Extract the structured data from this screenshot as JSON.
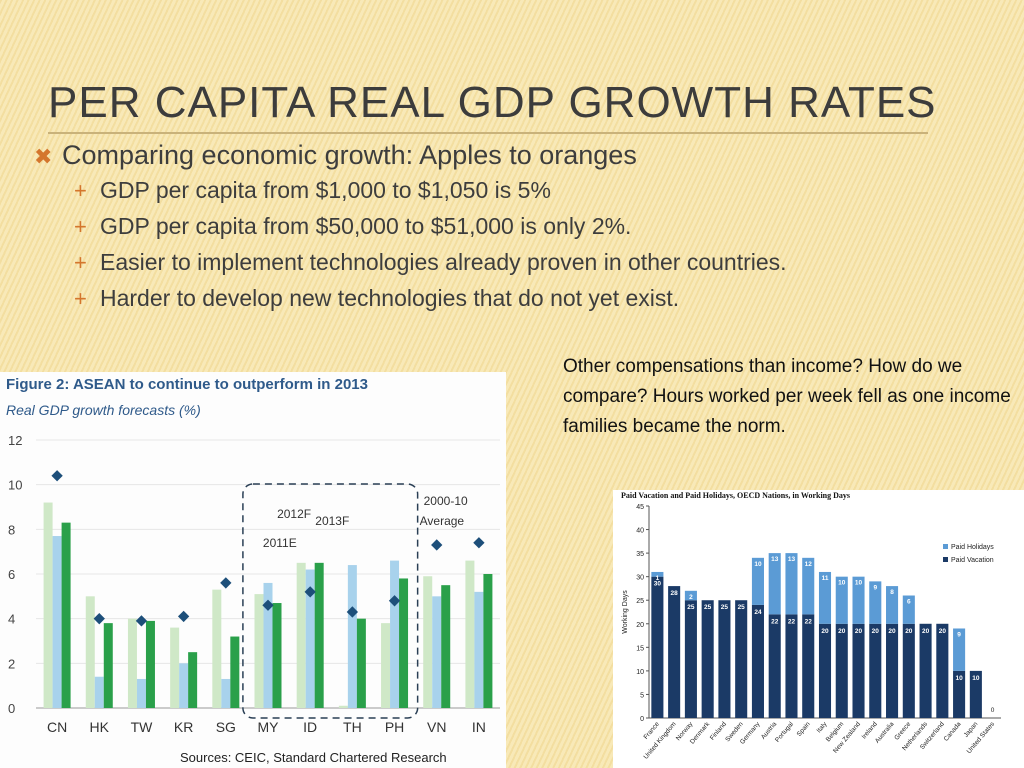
{
  "slide": {
    "title": "PER CAPITA REAL GDP GROWTH RATES",
    "bullet": "Comparing economic growth: Apples to oranges",
    "subbullets": [
      "GDP per capita from $1,000 to $1,050 is 5%",
      "GDP per capita from $50,000 to $51,000 is only 2%.",
      "Easier to implement technologies already proven in other countries.",
      "Harder to develop new technologies that do not yet exist."
    ],
    "side_note": "Other compensations than income?  How do we compare? Hours worked per week fell as one income families became the norm.",
    "colors": {
      "accent": "#d4762d",
      "title": "#3c3c3c"
    },
    "icons": {
      "bullet": "x-mark-icon",
      "subbullet": "plus-icon"
    }
  },
  "chart_data": [
    {
      "type": "bar",
      "title": "Figure 2: ASEAN to continue to outperform in 2013",
      "subtitle": "Real GDP growth forecasts (%)",
      "source": "Sources: CEIC, Standard Chartered Research",
      "categories": [
        "CN",
        "HK",
        "TW",
        "KR",
        "SG",
        "MY",
        "ID",
        "TH",
        "PH",
        "VN",
        "IN"
      ],
      "ylim": [
        0,
        12
      ],
      "yticks": [
        0,
        2,
        4,
        6,
        8,
        10,
        12
      ],
      "series": [
        {
          "name": "2011E",
          "values": [
            9.2,
            5.0,
            4.0,
            3.6,
            5.3,
            5.1,
            6.5,
            0.1,
            3.8,
            5.9,
            6.6
          ],
          "color": "#cfe8c7"
        },
        {
          "name": "2012F",
          "values": [
            7.7,
            1.4,
            1.3,
            2.0,
            1.3,
            5.6,
            6.2,
            6.4,
            6.6,
            5.0,
            5.2
          ],
          "color": "#a8d2ec"
        },
        {
          "name": "2013F",
          "values": [
            8.3,
            3.8,
            3.9,
            2.5,
            3.2,
            4.7,
            6.5,
            4.0,
            5.8,
            5.5,
            6.0
          ],
          "color": "#2aa04a"
        }
      ],
      "average_label": "2000-10 Average",
      "average": [
        10.4,
        4.0,
        3.9,
        4.1,
        5.6,
        4.6,
        5.2,
        4.3,
        4.8,
        7.3,
        7.4
      ],
      "annotations": [
        "2011E",
        "2012F",
        "2013F",
        "2000-10",
        "Average"
      ]
    },
    {
      "type": "bar",
      "title": "Paid Vacation and Paid Holidays, OECD Nations, in Working Days",
      "ylabel": "Working Days",
      "ylim": [
        0,
        45
      ],
      "yticks": [
        0,
        5,
        10,
        15,
        20,
        25,
        30,
        35,
        40,
        45
      ],
      "categories": [
        "France",
        "United Kingdom",
        "Norway",
        "Denmark",
        "Finland",
        "Sweden",
        "Germany",
        "Austria",
        "Portugal",
        "Spain",
        "Italy",
        "Belgium",
        "New Zealand",
        "Ireland",
        "Australia",
        "Greece",
        "Netherlands",
        "Switzerland",
        "Canada",
        "Japan",
        "United States"
      ],
      "legend": [
        "Paid Holidays",
        "Paid Vacation"
      ],
      "legend_position": "right",
      "series": [
        {
          "name": "Paid Vacation",
          "values": [
            30,
            28,
            25,
            25,
            25,
            25,
            24,
            22,
            22,
            22,
            20,
            20,
            20,
            20,
            20,
            20,
            20,
            20,
            10,
            10,
            0
          ],
          "color": "#1b3a66"
        },
        {
          "name": "Paid Holidays",
          "values": [
            1,
            0,
            2,
            0,
            0,
            0,
            10,
            13,
            13,
            12,
            11,
            10,
            10,
            9,
            8,
            6,
            0,
            0,
            9,
            0,
            0
          ],
          "color": "#5b9bd5"
        }
      ]
    }
  ]
}
